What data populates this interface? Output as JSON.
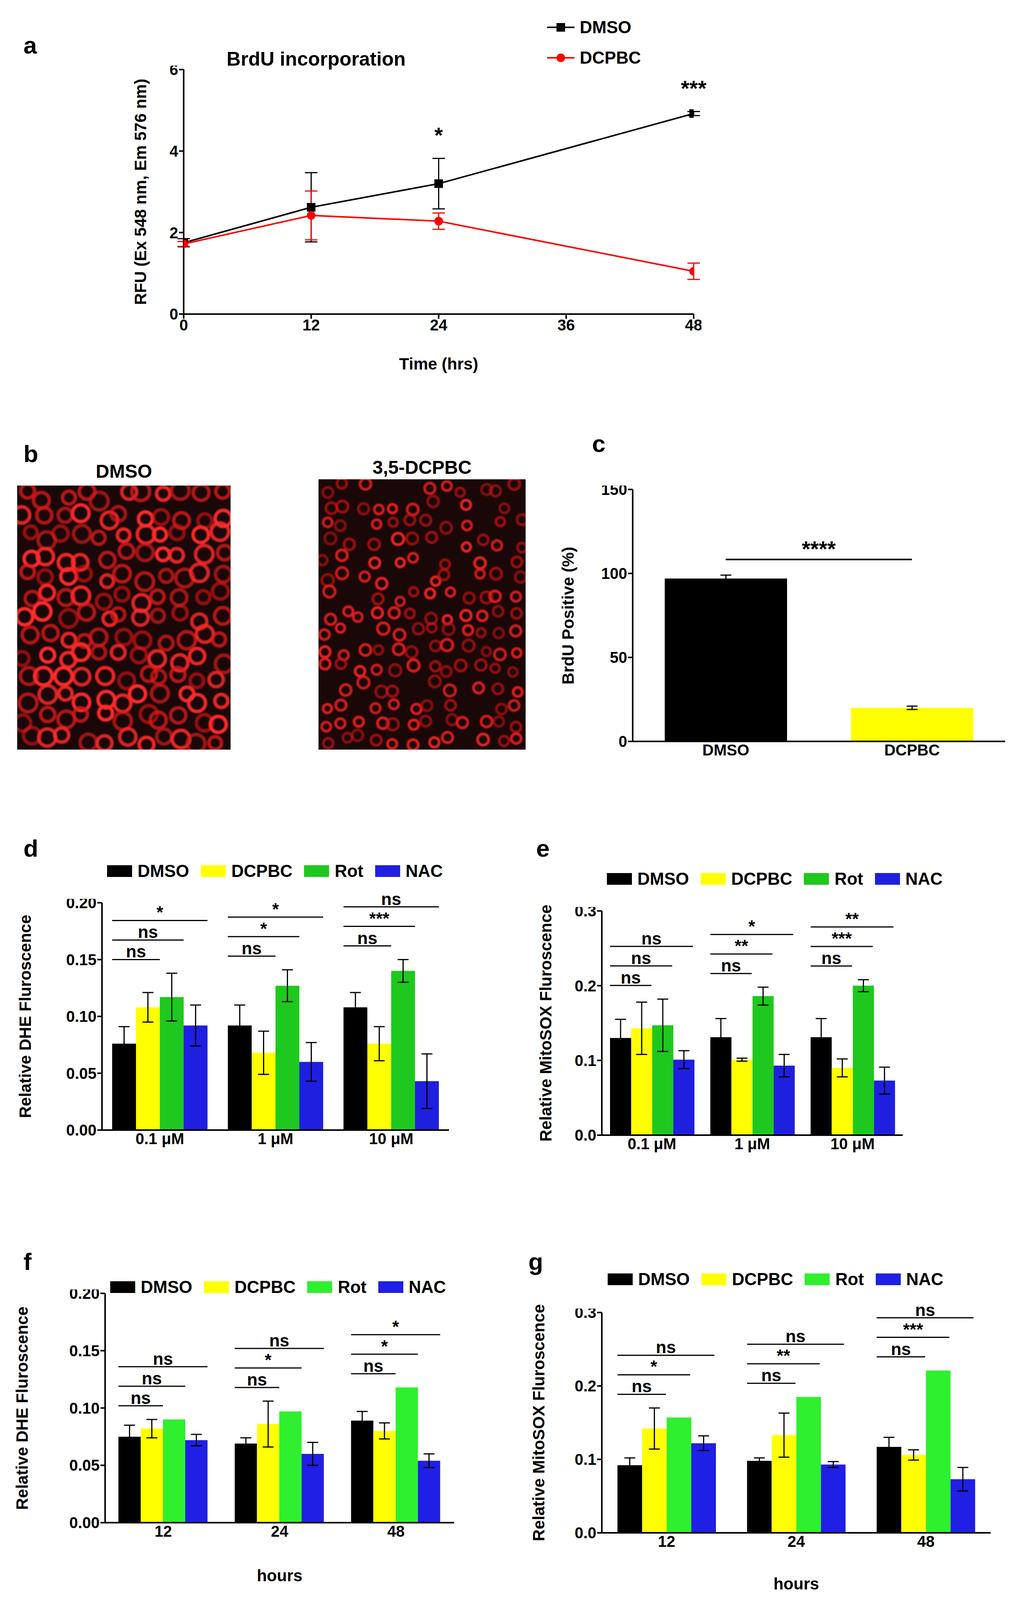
{
  "chart_data": [
    {
      "panel_label": "a",
      "type": "line",
      "title": "BrdU incorporation",
      "x_label": "Time (hrs)",
      "y_label": "RFU (Ex 548 nm, Em 576 nm)",
      "x": [
        0,
        12,
        24,
        48
      ],
      "xlim": [
        0,
        48
      ],
      "xticks": [
        0,
        12,
        24,
        36,
        48
      ],
      "ylim": [
        0,
        6
      ],
      "yticks": [
        0,
        2,
        4,
        6
      ],
      "legend": "top right",
      "series": [
        {
          "name": "DMSO",
          "color": "#000000",
          "marker": "square",
          "values": [
            1.75,
            2.62,
            3.2,
            4.92
          ],
          "errors": [
            0.1,
            0.85,
            0.62,
            0.05
          ]
        },
        {
          "name": "DCPBC",
          "color": "#ff0000",
          "marker": "circle",
          "values": [
            1.72,
            2.42,
            2.28,
            1.05
          ],
          "errors": [
            0.06,
            0.6,
            0.2,
            0.2
          ]
        }
      ],
      "annotations": [
        {
          "x": 24,
          "label": "*"
        },
        {
          "x": 48,
          "label": "***"
        }
      ]
    },
    {
      "panel_label": "c",
      "type": "bar",
      "y_label": "BrdU Positive (%)",
      "categories": [
        "DMSO",
        "DCPBC"
      ],
      "values": [
        97,
        20
      ],
      "errors": [
        2,
        1
      ],
      "colors": [
        "#000000",
        "#ffff00"
      ],
      "ylim": [
        0,
        150
      ],
      "yticks": [
        0,
        50,
        100,
        150
      ],
      "annotations": [
        {
          "from": "DMSO",
          "to": "DCPBC",
          "label": "****"
        }
      ]
    },
    {
      "panel_label": "d",
      "type": "bar",
      "y_label": "Relative DHE Fluroscence",
      "categories": [
        "0.1 μM",
        "1 μM",
        "10 μM"
      ],
      "ylim": [
        0,
        0.2
      ],
      "yticks": [
        {
          "value": 0,
          "label": "0.00"
        },
        0.05,
        {
          "value": 0.1,
          "label": "0.10"
        },
        0.15,
        {
          "value": 0.2,
          "label": "0.20"
        }
      ],
      "legend": "top",
      "series": [
        {
          "name": "DMSO",
          "color": "#000000",
          "values": [
            0.076,
            0.092,
            0.108
          ],
          "errors": [
            0.015,
            0.018,
            0.013
          ]
        },
        {
          "name": "DCPBC",
          "color": "#ffff00",
          "values": [
            0.108,
            0.068,
            0.076
          ],
          "errors": [
            0.013,
            0.019,
            0.015
          ]
        },
        {
          "name": "Rot",
          "color": "#1ec81e",
          "values": [
            0.117,
            0.127,
            0.14
          ],
          "errors": [
            0.021,
            0.014,
            0.01
          ]
        },
        {
          "name": "NAC",
          "color": "#1f1fe0",
          "values": [
            0.092,
            0.06,
            0.043
          ],
          "errors": [
            0.018,
            0.017,
            0.024
          ]
        }
      ],
      "annotations": [
        {
          "group": "0.1 μM",
          "from": "DMSO",
          "to": "DCPBC",
          "label": "ns"
        },
        {
          "group": "0.1 μM",
          "from": "DMSO",
          "to": "Rot",
          "label": "ns"
        },
        {
          "group": "0.1 μM",
          "from": "DMSO",
          "to": "NAC",
          "label": "*"
        },
        {
          "group": "1 μM",
          "from": "DMSO",
          "to": "DCPBC",
          "label": "ns"
        },
        {
          "group": "1 μM",
          "from": "DMSO",
          "to": "Rot",
          "label": "*"
        },
        {
          "group": "1 μM",
          "from": "DMSO",
          "to": "NAC",
          "label": "*"
        },
        {
          "group": "10 μM",
          "from": "DMSO",
          "to": "DCPBC",
          "label": "ns"
        },
        {
          "group": "10 μM",
          "from": "DMSO",
          "to": "Rot",
          "label": "***"
        },
        {
          "group": "10 μM",
          "from": "DMSO",
          "to": "NAC",
          "label": "ns"
        }
      ]
    },
    {
      "panel_label": "e",
      "type": "bar",
      "y_label": "Relative MitoSOX Fluroscence",
      "categories": [
        "0.1 μM",
        "1 μM",
        "10 μM"
      ],
      "ylim": [
        0,
        0.3
      ],
      "yticks": [
        {
          "value": 0,
          "label": "0.0"
        },
        0.1,
        0.2,
        0.3
      ],
      "legend": "top",
      "series": [
        {
          "name": "DMSO",
          "color": "#000000",
          "values": [
            0.13,
            0.131,
            0.131
          ],
          "errors": [
            0.025,
            0.025,
            0.025
          ]
        },
        {
          "name": "DCPBC",
          "color": "#ffff00",
          "values": [
            0.143,
            0.101,
            0.09
          ],
          "errors": [
            0.035,
            0.002,
            0.012
          ]
        },
        {
          "name": "Rot",
          "color": "#1ec81e",
          "values": [
            0.147,
            0.186,
            0.2
          ],
          "errors": [
            0.035,
            0.012,
            0.008
          ]
        },
        {
          "name": "NAC",
          "color": "#1f1fe0",
          "values": [
            0.101,
            0.093,
            0.073
          ],
          "errors": [
            0.012,
            0.015,
            0.018
          ]
        }
      ],
      "annotations": [
        {
          "group": "0.1 μM",
          "from": "DMSO",
          "to": "DCPBC",
          "label": "ns"
        },
        {
          "group": "0.1 μM",
          "from": "DMSO",
          "to": "Rot",
          "label": "ns"
        },
        {
          "group": "0.1 μM",
          "from": "DMSO",
          "to": "NAC",
          "label": "ns"
        },
        {
          "group": "1 μM",
          "from": "DMSO",
          "to": "DCPBC",
          "label": "ns"
        },
        {
          "group": "1 μM",
          "from": "DMSO",
          "to": "Rot",
          "label": "**"
        },
        {
          "group": "1 μM",
          "from": "DMSO",
          "to": "NAC",
          "label": "*"
        },
        {
          "group": "10 μM",
          "from": "DMSO",
          "to": "DCPBC",
          "label": "ns"
        },
        {
          "group": "10 μM",
          "from": "DMSO",
          "to": "Rot",
          "label": "***"
        },
        {
          "group": "10 μM",
          "from": "DMSO",
          "to": "NAC",
          "label": "**"
        }
      ]
    },
    {
      "panel_label": "f",
      "type": "bar",
      "x_label": "hours",
      "y_label": "Relative DHE Fluroscence",
      "categories": [
        "12",
        "24",
        "48"
      ],
      "ylim": [
        0,
        0.2
      ],
      "yticks": [
        {
          "value": 0,
          "label": "0.00"
        },
        0.05,
        {
          "value": 0.1,
          "label": "0.10"
        },
        0.15,
        {
          "value": 0.2,
          "label": "0.20"
        }
      ],
      "legend": "top",
      "series": [
        {
          "name": "DMSO",
          "color": "#000000",
          "values": [
            0.075,
            0.069,
            0.089
          ],
          "errors": [
            0.01,
            0.005,
            0.008
          ]
        },
        {
          "name": "DCPBC",
          "color": "#ffff00",
          "values": [
            0.082,
            0.086,
            0.08
          ],
          "errors": [
            0.008,
            0.02,
            0.007
          ]
        },
        {
          "name": "Rot",
          "color": "#2ef02e",
          "values": [
            0.09,
            0.097,
            0.118
          ]
        },
        {
          "name": "NAC",
          "color": "#1f1fe6",
          "values": [
            0.072,
            0.06,
            0.054
          ],
          "errors": [
            0.005,
            0.01,
            0.006
          ]
        }
      ],
      "annotations": [
        {
          "group": "12",
          "from": "DMSO",
          "to": "DCPBC",
          "label": "ns"
        },
        {
          "group": "12",
          "from": "DMSO",
          "to": "Rot",
          "label": "ns"
        },
        {
          "group": "12",
          "from": "DMSO",
          "to": "NAC",
          "label": "ns"
        },
        {
          "group": "24",
          "from": "DMSO",
          "to": "DCPBC",
          "label": "ns"
        },
        {
          "group": "24",
          "from": "DMSO",
          "to": "Rot",
          "label": "*"
        },
        {
          "group": "24",
          "from": "DMSO",
          "to": "NAC",
          "label": "ns"
        },
        {
          "group": "48",
          "from": "DMSO",
          "to": "DCPBC",
          "label": "ns"
        },
        {
          "group": "48",
          "from": "DMSO",
          "to": "Rot",
          "label": "*"
        },
        {
          "group": "48",
          "from": "DMSO",
          "to": "NAC",
          "label": "*"
        }
      ]
    },
    {
      "panel_label": "g",
      "type": "bar",
      "x_label": "hours",
      "y_label": "Relative MitoSOX Fluroscence",
      "categories": [
        "12",
        "24",
        "48"
      ],
      "ylim": [
        0,
        0.3
      ],
      "yticks": [
        {
          "value": 0,
          "label": "0.0"
        },
        0.1,
        0.2,
        0.3
      ],
      "legend": "top",
      "series": [
        {
          "name": "DMSO",
          "color": "#000000",
          "values": [
            0.092,
            0.098,
            0.117
          ],
          "errors": [
            0.01,
            0.004,
            0.013
          ]
        },
        {
          "name": "DCPBC",
          "color": "#ffff00",
          "values": [
            0.142,
            0.133,
            0.106
          ],
          "errors": [
            0.028,
            0.03,
            0.007
          ]
        },
        {
          "name": "Rot",
          "color": "#2ef02e",
          "values": [
            0.157,
            0.185,
            0.221
          ]
        },
        {
          "name": "NAC",
          "color": "#1f1fe6",
          "values": [
            0.122,
            0.093,
            0.073
          ],
          "errors": [
            0.01,
            0.004,
            0.016
          ]
        }
      ],
      "annotations": [
        {
          "group": "12",
          "from": "DMSO",
          "to": "DCPBC",
          "label": "ns"
        },
        {
          "group": "12",
          "from": "DMSO",
          "to": "Rot",
          "label": "*"
        },
        {
          "group": "12",
          "from": "DMSO",
          "to": "NAC",
          "label": "ns"
        },
        {
          "group": "24",
          "from": "DMSO",
          "to": "DCPBC",
          "label": "ns"
        },
        {
          "group": "24",
          "from": "DMSO",
          "to": "Rot",
          "label": "**"
        },
        {
          "group": "24",
          "from": "DMSO",
          "to": "NAC",
          "label": "ns"
        },
        {
          "group": "48",
          "from": "DMSO",
          "to": "DCPBC",
          "label": "ns"
        },
        {
          "group": "48",
          "from": "DMSO",
          "to": "Rot",
          "label": "***"
        },
        {
          "group": "48",
          "from": "DMSO",
          "to": "NAC",
          "label": "ns"
        }
      ]
    }
  ],
  "images": {
    "panel_label": "b",
    "labels": [
      "DMSO",
      "3,5-DCPBC"
    ]
  }
}
